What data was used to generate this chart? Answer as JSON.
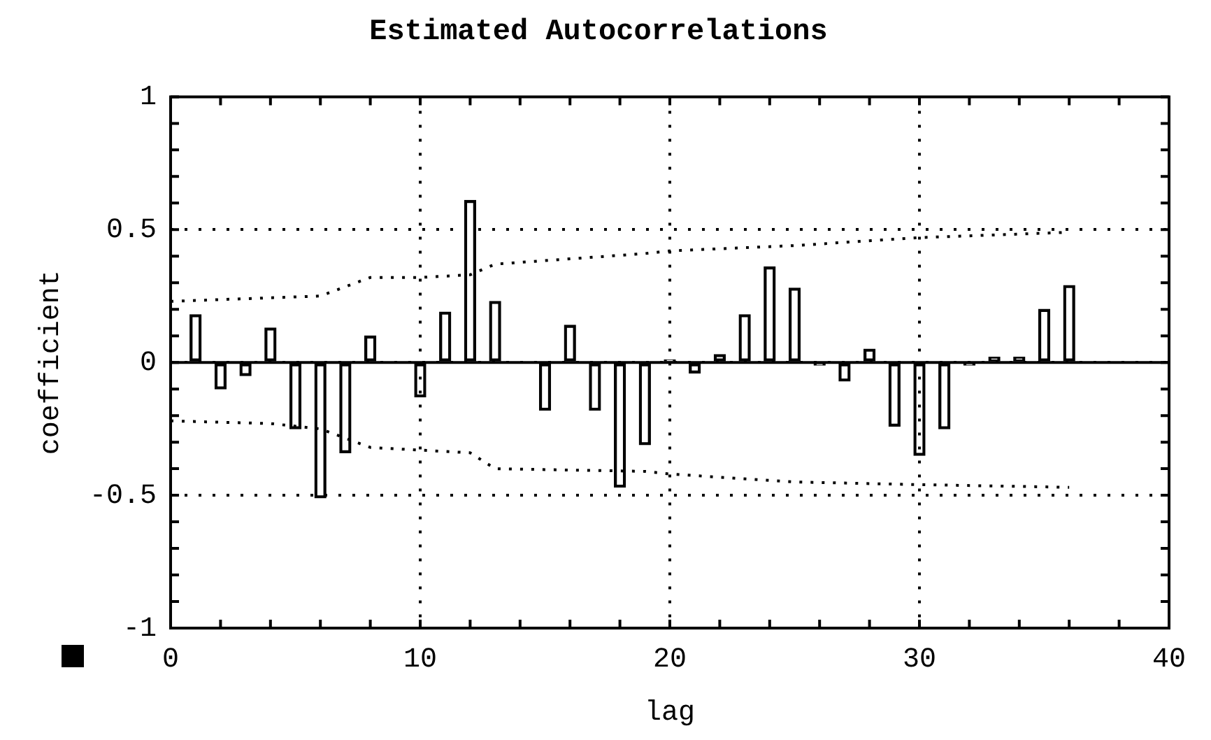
{
  "chart_data": {
    "type": "bar",
    "title": "Estimated Autocorrelations",
    "xlabel": "lag",
    "ylabel": "coefficient",
    "x": [
      1,
      2,
      3,
      4,
      5,
      6,
      7,
      8,
      9,
      10,
      11,
      12,
      13,
      14,
      15,
      16,
      17,
      18,
      19,
      20,
      21,
      22,
      23,
      24,
      25,
      26,
      27,
      28,
      29,
      30,
      31,
      32,
      33,
      34,
      35,
      36
    ],
    "series": [
      {
        "color": "#000000",
        "values": [
          0.18,
          -0.1,
          -0.05,
          0.13,
          -0.25,
          -0.51,
          -0.34,
          0.1,
          null,
          -0.13,
          0.19,
          0.61,
          0.23,
          null,
          -0.18,
          0.14,
          -0.18,
          -0.47,
          -0.31,
          0.01,
          -0.04,
          0.03,
          0.18,
          0.36,
          0.28,
          -0.01,
          -0.07,
          0.05,
          -0.24,
          -0.35,
          -0.25,
          -0.01,
          0.02,
          0.02,
          0.2,
          0.29
        ]
      },
      {
        "type": "line",
        "color": "#000000",
        "line_style": "dotted",
        "x": [
          0,
          6,
          8,
          10,
          12,
          13,
          19,
          20,
          25,
          30,
          36
        ],
        "values": [
          0.23,
          0.25,
          0.32,
          0.32,
          0.33,
          0.37,
          0.41,
          0.42,
          0.44,
          0.47,
          0.49
        ]
      },
      {
        "type": "line",
        "color": "#000000",
        "line_style": "dotted",
        "x": [
          0,
          4,
          6,
          8,
          12,
          13,
          19,
          20,
          25,
          30,
          36
        ],
        "values": [
          -0.22,
          -0.23,
          -0.25,
          -0.32,
          -0.34,
          -0.4,
          -0.41,
          -0.42,
          -0.45,
          -0.46,
          -0.47
        ]
      }
    ],
    "xlim": [
      0,
      40
    ],
    "xticks": [
      0,
      {
        "value": 2,
        "label": null
      },
      {
        "value": 4,
        "label": null
      },
      {
        "value": 6,
        "label": null
      },
      {
        "value": 8,
        "label": null
      },
      10,
      {
        "value": 12,
        "label": null
      },
      {
        "value": 14,
        "label": null
      },
      {
        "value": 16,
        "label": null
      },
      {
        "value": 18,
        "label": null
      },
      20,
      {
        "value": 22,
        "label": null
      },
      {
        "value": 24,
        "label": null
      },
      {
        "value": 26,
        "label": null
      },
      {
        "value": 28,
        "label": null
      },
      30,
      {
        "value": 32,
        "label": null
      },
      {
        "value": 34,
        "label": null
      },
      {
        "value": 36,
        "label": null
      },
      {
        "value": 38,
        "label": null
      },
      40
    ],
    "ylim": [
      -1,
      1
    ],
    "yticks": [
      -1,
      {
        "value": -0.9,
        "label": null
      },
      {
        "value": -0.8,
        "label": null
      },
      {
        "value": -0.7,
        "label": null
      },
      {
        "value": -0.6,
        "label": null
      },
      -0.5,
      {
        "value": -0.4,
        "label": null
      },
      {
        "value": -0.3,
        "label": null
      },
      {
        "value": -0.2,
        "label": null
      },
      {
        "value": -0.1,
        "label": null
      },
      0,
      {
        "value": 0.1,
        "label": null
      },
      {
        "value": 0.2,
        "label": null
      },
      {
        "value": 0.3,
        "label": null
      },
      {
        "value": 0.4,
        "label": null
      },
      0.5,
      {
        "value": 0.6,
        "label": null
      },
      {
        "value": 0.7,
        "label": null
      },
      {
        "value": 0.8,
        "label": null
      },
      {
        "value": 0.9,
        "label": null
      },
      1
    ],
    "grid": true,
    "marker": "none"
  }
}
